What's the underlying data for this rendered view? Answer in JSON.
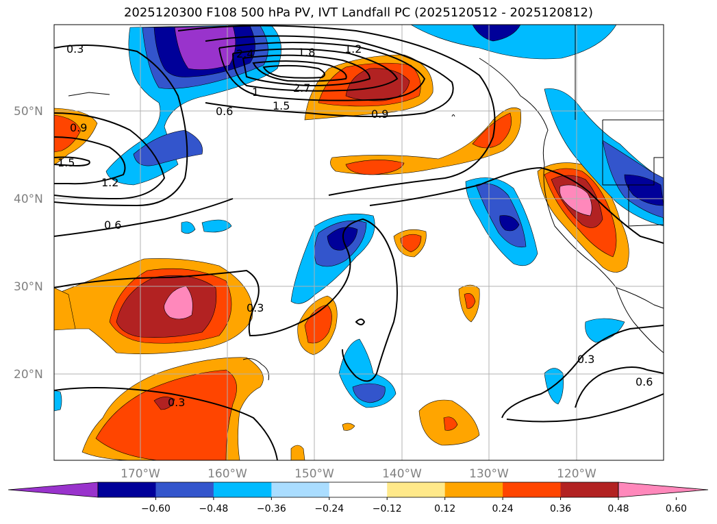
{
  "title": "2025120300 F108 500 hPa PV, IVT Landfall PC (2025120512 - 2025120812)",
  "lat_labels": [
    "50°N",
    "40°N",
    "30°N",
    "20°N"
  ],
  "lon_labels": [
    "170°W",
    "160°W",
    "150°W",
    "140°W",
    "130°W",
    "120°W"
  ],
  "contour_labels": [
    "0.3",
    "1.8",
    "1.2",
    "2.4",
    "2.7",
    "1",
    "1.5",
    "0.6",
    "0.9",
    "0.9",
    "1.5",
    "1.2",
    "0.6",
    "0.3",
    "0.3",
    "0.3",
    "0.6"
  ],
  "colorbar": {
    "ticks": [
      "−0.60",
      "−0.48",
      "−0.36",
      "−0.24",
      "−0.12",
      "0.12",
      "0.24",
      "0.36",
      "0.48",
      "0.60"
    ],
    "colors": [
      "#9933cc",
      "#000099",
      "#3355cc",
      "#00bbff",
      "#aaddff",
      "#ffffff",
      "#ffe98a",
      "#ffa500",
      "#ff4500",
      "#b22222",
      "#ff88bb"
    ]
  },
  "palette": {
    "purple": "#9933cc",
    "navy": "#000099",
    "blue": "#3355cc",
    "cyan": "#00bbff",
    "pale_blue": "#aaddff",
    "yellow": "#ffe98a",
    "orange": "#ffa500",
    "red_orange": "#ff4500",
    "dark_red": "#b22222",
    "pink": "#ff88bb"
  }
}
